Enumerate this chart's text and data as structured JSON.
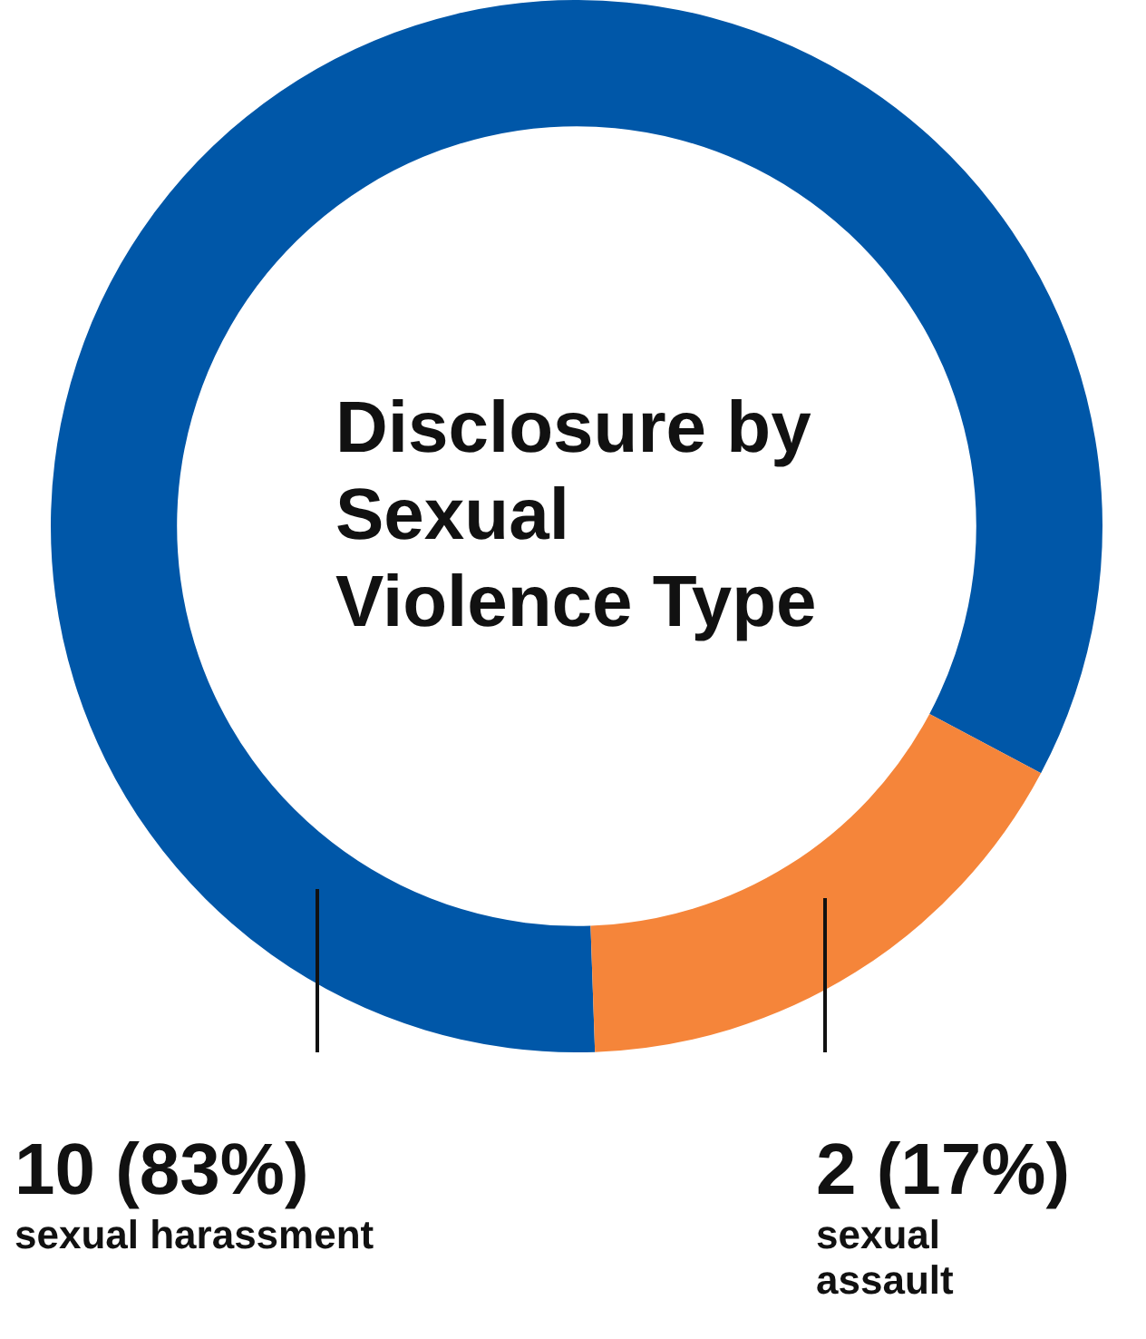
{
  "chart_data": {
    "type": "donut",
    "title": "Disclosure by Sexual Violence Type",
    "categories": [
      "sexual harassment",
      "sexual assault"
    ],
    "values": [
      10,
      2
    ],
    "colors": [
      "#0057a8",
      "#f5853a"
    ],
    "value_labels": [
      "10 (83%)",
      "2 (17%)"
    ],
    "legend": false
  }
}
